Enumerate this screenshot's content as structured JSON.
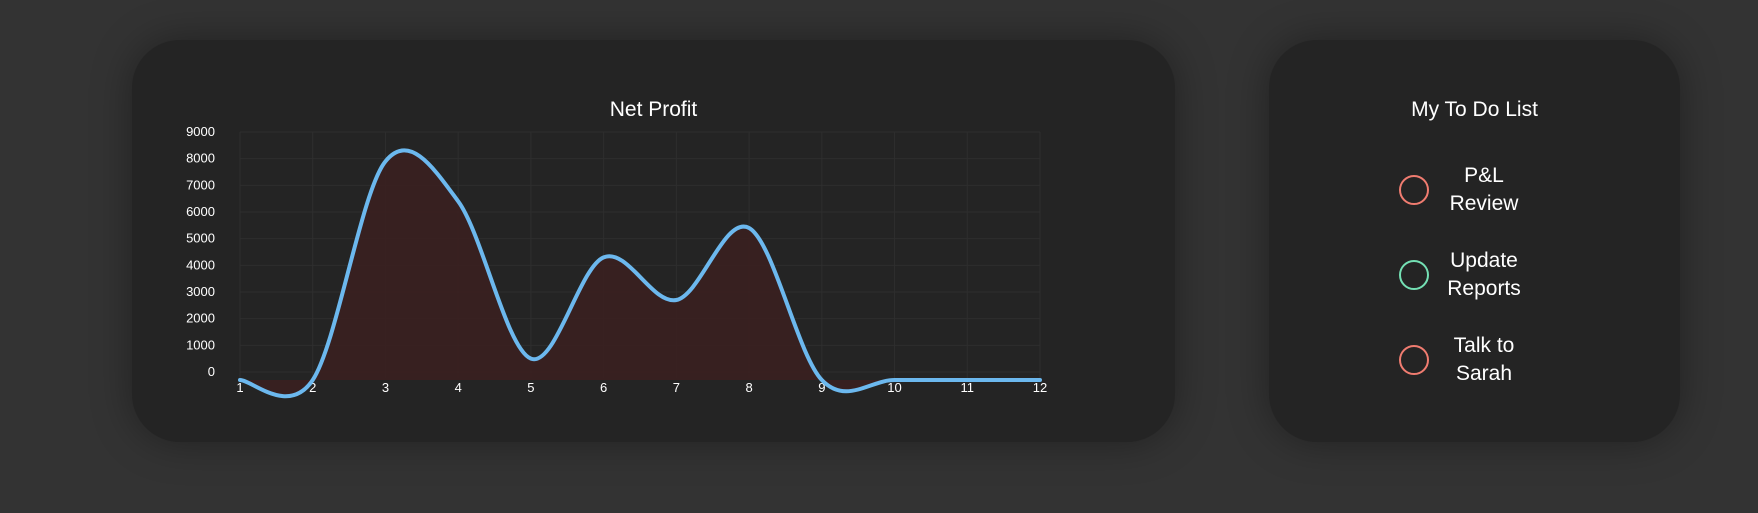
{
  "chart_card": {
    "title": "Net Profit"
  },
  "chart_data": {
    "type": "area",
    "title": "Net Profit",
    "x": [
      1,
      2,
      3,
      4,
      5,
      6,
      7,
      8,
      9,
      10,
      11,
      12
    ],
    "y": [
      -300,
      -300,
      7900,
      6400,
      500,
      4300,
      2700,
      5400,
      -300,
      -300,
      -300,
      -300
    ],
    "xlabel": "",
    "ylabel": "",
    "ylim": [
      0,
      9000
    ],
    "yticks": [
      0,
      1000,
      2000,
      3000,
      4000,
      5000,
      6000,
      7000,
      8000,
      9000
    ],
    "grid": true,
    "legend": "none",
    "line_color": "#6cb8ee",
    "fill_color": "#3a2020"
  },
  "todo": {
    "title": "My To Do List",
    "items": [
      {
        "label": "P&L Review",
        "line1": "P&L",
        "line2": "Review",
        "circle_color": "#f07c70"
      },
      {
        "label": "Update Reports",
        "line1": "Update",
        "line2": "Reports",
        "circle_color": "#74e0b4"
      },
      {
        "label": "Talk to Sarah",
        "line1": "Talk to",
        "line2": "Sarah",
        "circle_color": "#f07c70"
      }
    ]
  }
}
